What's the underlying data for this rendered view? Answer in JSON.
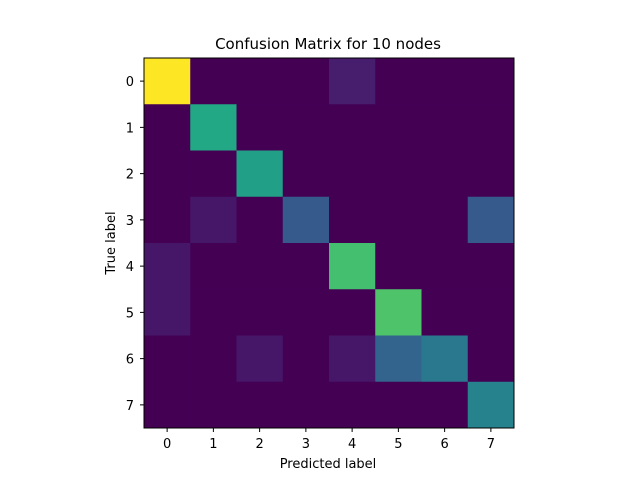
{
  "chart_data": {
    "type": "heatmap",
    "title": "Confusion Matrix for 10 nodes",
    "xlabel": "Predicted label",
    "ylabel": "True label",
    "x_tick_labels": [
      "0",
      "1",
      "2",
      "3",
      "4",
      "5",
      "6",
      "7"
    ],
    "y_tick_labels": [
      "0",
      "1",
      "2",
      "3",
      "4",
      "5",
      "6",
      "7"
    ],
    "colormap": "viridis",
    "grid": false,
    "values": [
      [
        1.0,
        0.0,
        0.0,
        0.0,
        0.08,
        0.0,
        0.0,
        0.0
      ],
      [
        0.0,
        0.6,
        0.0,
        0.0,
        0.0,
        0.0,
        0.0,
        0.0
      ],
      [
        0.0,
        0.0,
        0.56,
        0.0,
        0.0,
        0.0,
        0.0,
        0.0
      ],
      [
        0.0,
        0.06,
        0.0,
        0.28,
        0.0,
        0.0,
        0.0,
        0.28
      ],
      [
        0.06,
        0.0,
        0.0,
        0.0,
        0.7,
        0.0,
        0.0,
        0.0
      ],
      [
        0.06,
        0.0,
        0.0,
        0.0,
        0.0,
        0.72,
        0.0,
        0.0
      ],
      [
        0.0,
        0.0,
        0.06,
        0.0,
        0.06,
        0.32,
        0.4,
        0.0
      ],
      [
        0.0,
        0.0,
        0.0,
        0.0,
        0.0,
        0.0,
        0.0,
        0.44
      ]
    ]
  }
}
